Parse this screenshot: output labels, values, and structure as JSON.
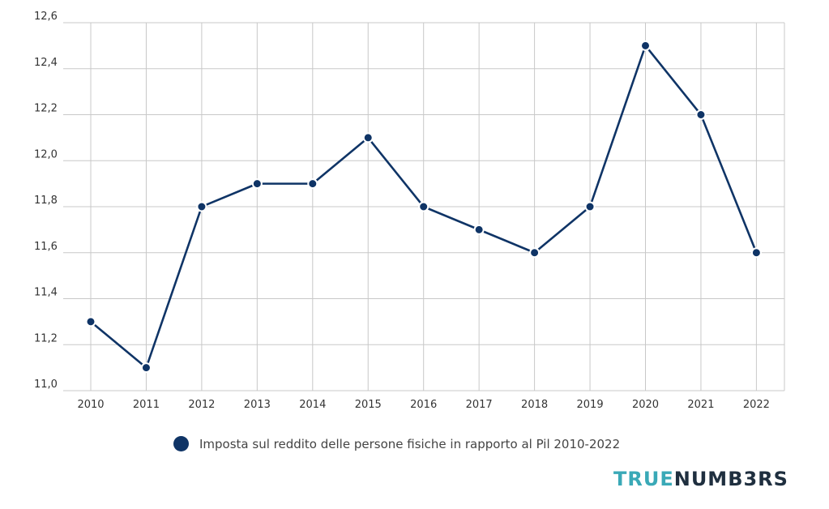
{
  "chart_data": {
    "type": "line",
    "x": [
      "2010",
      "2011",
      "2012",
      "2013",
      "2014",
      "2015",
      "2016",
      "2017",
      "2018",
      "2019",
      "2020",
      "2021",
      "2022"
    ],
    "series": [
      {
        "name": "Imposta sul reddito delle persone fisiche in rapporto al Pil 2010-2022",
        "values": [
          11.3,
          11.1,
          11.8,
          11.9,
          11.9,
          12.1,
          11.8,
          11.7,
          11.6,
          11.8,
          12.5,
          12.2,
          11.6
        ]
      }
    ],
    "ylim": [
      11.0,
      12.6
    ],
    "yticks": [
      "11,0",
      "11,2",
      "11,4",
      "11,6",
      "11,8",
      "12,0",
      "12,2",
      "12,4",
      "12,6"
    ],
    "ytick_values": [
      11.0,
      11.2,
      11.4,
      11.6,
      11.8,
      12.0,
      12.2,
      12.4,
      12.6
    ],
    "grid": true,
    "legend_position": "bottom-center"
  },
  "colors": {
    "line": "#0f3466",
    "grid": "#c8c8c8",
    "brand_true": "#3aa9b7",
    "brand_rest": "#1f2f3f"
  },
  "brand": {
    "part1": "TRUE",
    "part2": "NUMB3RS"
  }
}
